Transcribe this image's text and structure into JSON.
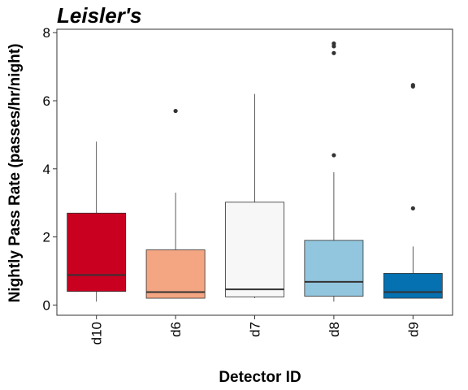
{
  "chart_data": {
    "type": "box",
    "title": "Leisler's",
    "xlabel": "Detector ID",
    "ylabel": "Nightly Pass Rate (passes/hr/night)",
    "ylim": [
      -0.3,
      8.1
    ],
    "yticks": [
      0,
      2,
      4,
      6,
      8
    ],
    "grid": false,
    "categories": [
      "d10",
      "d6",
      "d7",
      "d8",
      "d9"
    ],
    "boxes": [
      {
        "category": "d10",
        "min": 0.1,
        "q1": 0.4,
        "median": 0.88,
        "q3": 2.7,
        "max": 4.8,
        "outliers": [],
        "color": "#ca0020"
      },
      {
        "category": "d6",
        "min": 0.2,
        "q1": 0.2,
        "median": 0.38,
        "q3": 1.62,
        "max": 3.3,
        "outliers": [
          5.7
        ],
        "color": "#f4a582"
      },
      {
        "category": "d7",
        "min": 0.2,
        "q1": 0.24,
        "median": 0.46,
        "q3": 3.02,
        "max": 6.2,
        "outliers": [],
        "color": "#f7f7f7"
      },
      {
        "category": "d8",
        "min": 0.1,
        "q1": 0.26,
        "median": 0.68,
        "q3": 1.9,
        "max": 3.9,
        "outliers": [
          4.4,
          7.4,
          7.6,
          7.68
        ],
        "color": "#92c5de"
      },
      {
        "category": "d9",
        "min": 0.2,
        "q1": 0.2,
        "median": 0.38,
        "q3": 0.93,
        "max": 1.72,
        "outliers": [
          2.84,
          6.42,
          6.46
        ],
        "color": "#0571b0"
      }
    ]
  }
}
